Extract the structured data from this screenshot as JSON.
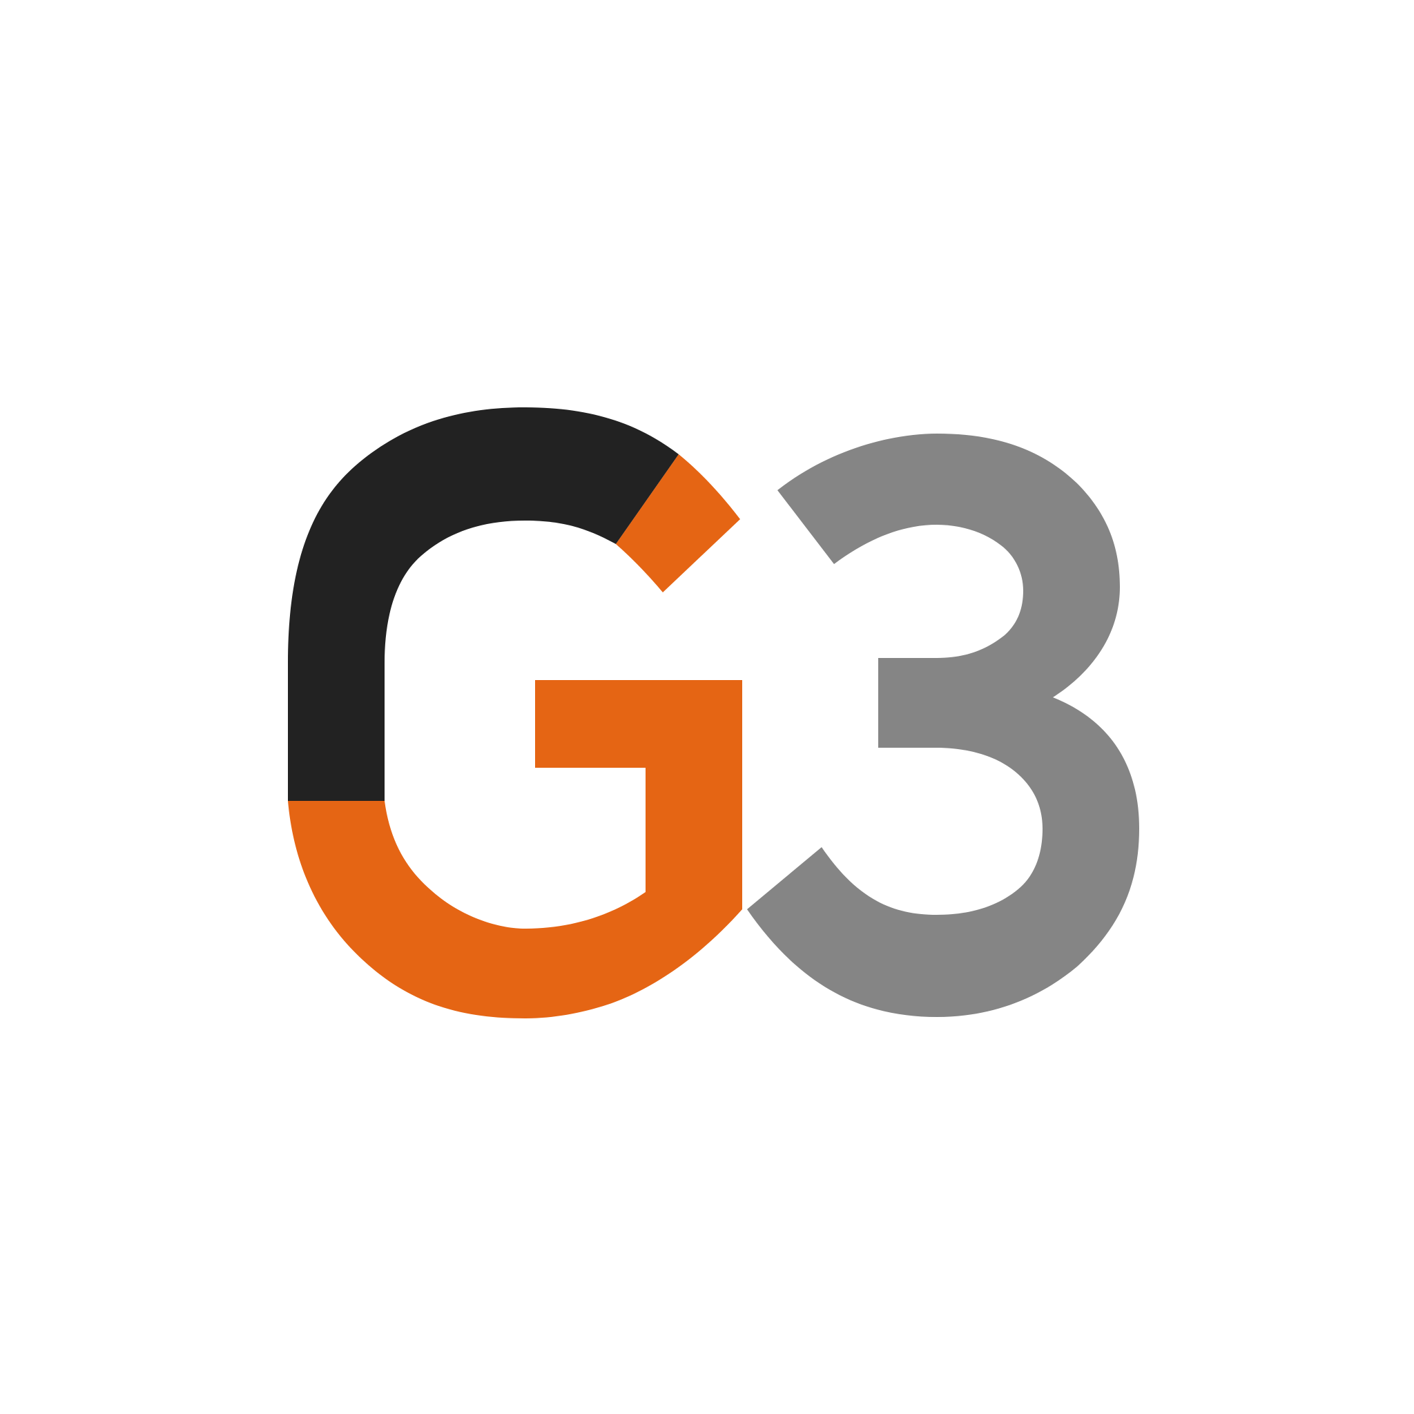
{
  "logo": {
    "text": "G3",
    "colors": {
      "background": "#ffffff",
      "g_upper": "#222222",
      "g_accent": "#e56514",
      "three": "#858585"
    }
  }
}
